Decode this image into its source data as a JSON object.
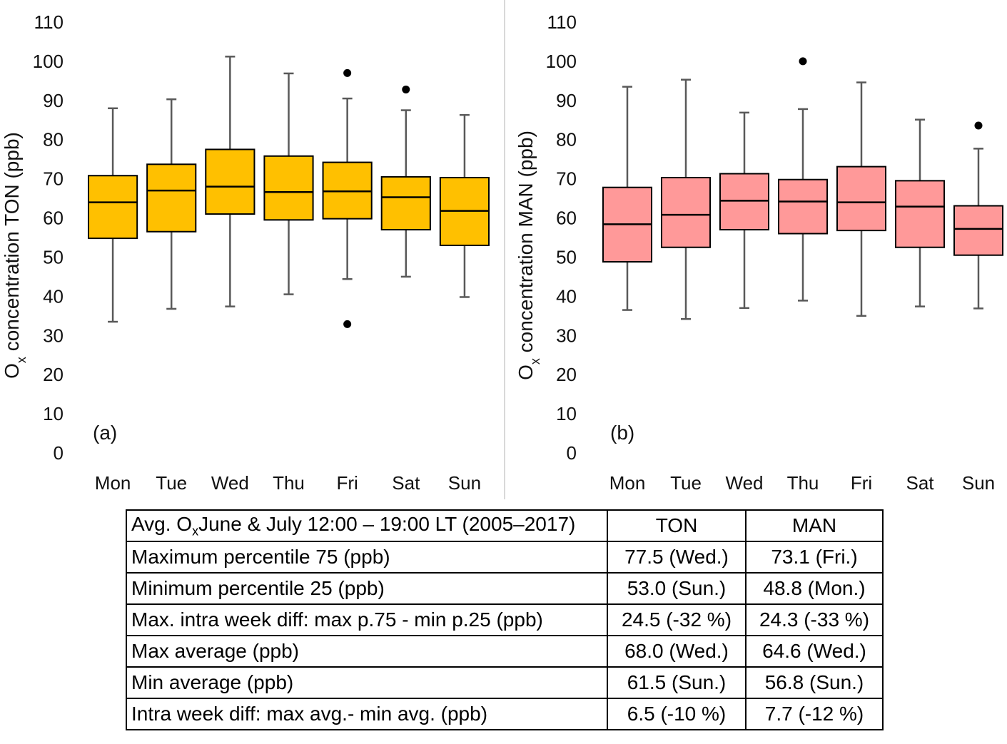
{
  "colors": {
    "panel_a_fill": "#FFC000",
    "panel_b_fill": "#FF9999",
    "whisker": "#595959",
    "axis": "#d9d9d9"
  },
  "chart_data": [
    {
      "type": "box",
      "panel_label": "(a)",
      "ylabel_main": "O",
      "ylabel_sub": "x",
      "ylabel_rest": " concentration TON (ppb)",
      "ylim": [
        0,
        110
      ],
      "yticks": [
        "0",
        "10",
        "20",
        "30",
        "40",
        "50",
        "60",
        "70",
        "80",
        "90",
        "100",
        "110"
      ],
      "categories": [
        "Mon",
        "Tue",
        "Wed",
        "Thu",
        "Fri",
        "Sat",
        "Sun"
      ],
      "boxes": [
        {
          "min": 33.5,
          "q1": 54.8,
          "median": 64.0,
          "q3": 70.8,
          "max": 88.0,
          "outliers": []
        },
        {
          "min": 36.8,
          "q1": 56.5,
          "median": 67.0,
          "q3": 73.7,
          "max": 90.3,
          "outliers": []
        },
        {
          "min": 37.4,
          "q1": 61.0,
          "median": 68.0,
          "q3": 77.5,
          "max": 101.2,
          "outliers": []
        },
        {
          "min": 40.5,
          "q1": 59.5,
          "median": 66.6,
          "q3": 75.8,
          "max": 96.9,
          "outliers": []
        },
        {
          "min": 44.4,
          "q1": 59.8,
          "median": 66.8,
          "q3": 74.2,
          "max": 90.5,
          "outliers": [
            97.0,
            32.9
          ]
        },
        {
          "min": 45.0,
          "q1": 57.0,
          "median": 65.3,
          "q3": 70.5,
          "max": 87.5,
          "outliers": [
            92.8
          ]
        },
        {
          "min": 39.8,
          "q1": 53.0,
          "median": 61.8,
          "q3": 70.3,
          "max": 86.3,
          "outliers": []
        }
      ]
    },
    {
      "type": "box",
      "panel_label": "(b)",
      "ylabel_main": "O",
      "ylabel_sub": "x",
      "ylabel_rest": " concentration MAN (ppb)",
      "ylim": [
        0,
        110
      ],
      "yticks": [
        "0",
        "10",
        "20",
        "30",
        "40",
        "50",
        "60",
        "70",
        "80",
        "90",
        "100",
        "110"
      ],
      "categories": [
        "Mon",
        "Tue",
        "Wed",
        "Thu",
        "Fri",
        "Sat",
        "Sun"
      ],
      "boxes": [
        {
          "min": 36.5,
          "q1": 48.8,
          "median": 58.4,
          "q3": 67.8,
          "max": 93.5,
          "outliers": []
        },
        {
          "min": 34.2,
          "q1": 52.5,
          "median": 60.8,
          "q3": 70.3,
          "max": 95.3,
          "outliers": []
        },
        {
          "min": 37.0,
          "q1": 57.0,
          "median": 64.4,
          "q3": 71.3,
          "max": 86.9,
          "outliers": []
        },
        {
          "min": 38.9,
          "q1": 56.0,
          "median": 64.2,
          "q3": 69.8,
          "max": 87.8,
          "outliers": [
            100.0
          ]
        },
        {
          "min": 35.0,
          "q1": 56.8,
          "median": 64.0,
          "q3": 73.1,
          "max": 94.6,
          "outliers": []
        },
        {
          "min": 37.4,
          "q1": 52.5,
          "median": 62.9,
          "q3": 69.5,
          "max": 85.1,
          "outliers": []
        },
        {
          "min": 36.9,
          "q1": 50.5,
          "median": 57.2,
          "q3": 63.1,
          "max": 77.7,
          "outliers": [
            83.6
          ]
        }
      ]
    }
  ],
  "table": {
    "header": {
      "c0_a": "Avg. O",
      "c0_sub": "x",
      "c0_b": "June & July 12:00 – 19:00 LT (2005–2017)",
      "c1": "TON",
      "c2": "MAN"
    },
    "rows": [
      {
        "label": "Maximum percentile 75 (ppb)",
        "ton": "77.5 (Wed.)",
        "man": "73.1 (Fri.)"
      },
      {
        "label": "Minimum percentile 25  (ppb)",
        "ton": "53.0 (Sun.)",
        "man": "48.8 (Mon.)"
      },
      {
        "label": "Max. intra week diff: max p.75 - min p.25  (ppb)",
        "ton": "24.5 (-32 %)",
        "man": "24.3 (-33 %)"
      },
      {
        "label": "Max average (ppb)",
        "ton": "68.0 (Wed.)",
        "man": "64.6 (Wed.)"
      },
      {
        "label": "Min average (ppb)",
        "ton": "61.5 (Sun.)",
        "man": "56.8 (Sun.)"
      },
      {
        "label": "Intra week diff: max avg.- min avg. (ppb)",
        "ton": "6.5 (-10 %)",
        "man": "7.7 (-12 %)"
      }
    ]
  }
}
